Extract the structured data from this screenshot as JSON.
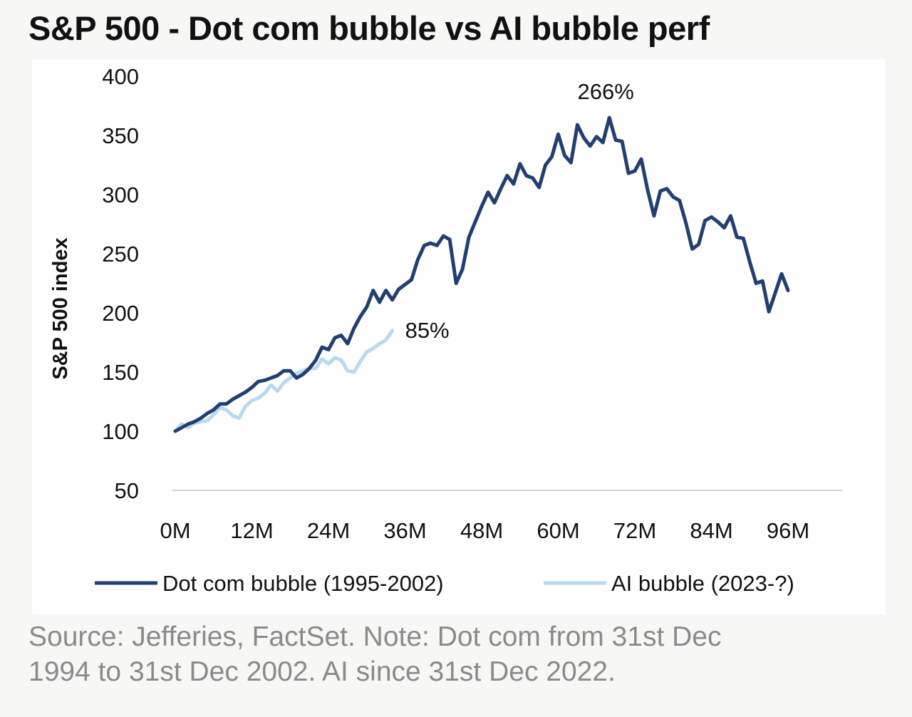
{
  "title": "S&P 500 - Dot com bubble vs AI bubble perf",
  "source_lines": [
    "Source: Jefferies, FactSet. Note: Dot com from 31st Dec",
    "1994 to 31st Dec 2002. AI since 31st Dec 2022."
  ],
  "chart_data": {
    "type": "line",
    "title": "S&P 500 - Dot com bubble vs AI bubble perf",
    "xlabel": "",
    "ylabel": "S&P 500 index",
    "xlim": [
      0,
      96
    ],
    "ylim": [
      50,
      400
    ],
    "x_ticks": [
      0,
      12,
      24,
      36,
      48,
      60,
      72,
      84,
      96
    ],
    "x_tick_labels": [
      "0M",
      "12M",
      "24M",
      "36M",
      "48M",
      "60M",
      "72M",
      "84M",
      "96M"
    ],
    "y_ticks": [
      50,
      100,
      150,
      200,
      250,
      300,
      350,
      400
    ],
    "y_tick_labels": [
      "50",
      "100",
      "150",
      "200",
      "250",
      "300",
      "350",
      "400"
    ],
    "grid": false,
    "legend": "bottom",
    "series": [
      {
        "name": "Dot com bubble (1995-2002)",
        "color": "#223f73",
        "values": [
          100,
          103,
          106,
          108,
          111,
          115,
          118,
          123,
          123,
          127,
          130,
          133,
          137,
          142,
          143,
          145,
          147,
          151,
          151,
          145,
          148,
          153,
          160,
          171,
          169,
          179,
          181,
          174,
          187,
          197,
          205,
          219,
          209,
          219,
          211,
          220,
          224,
          228,
          245,
          257,
          259,
          257,
          265,
          262,
          225,
          237,
          264,
          277,
          290,
          302,
          293,
          305,
          316,
          309,
          326,
          316,
          314,
          306,
          325,
          332,
          351,
          333,
          327,
          359,
          348,
          341,
          349,
          344,
          365,
          346,
          345,
          318,
          320,
          330,
          304,
          282,
          303,
          305,
          298,
          295,
          276,
          254,
          258,
          278,
          281,
          277,
          272,
          282,
          264,
          263,
          243,
          225,
          227,
          201,
          217,
          233,
          219
        ],
        "end_label": "",
        "peak_label": "266%"
      },
      {
        "name": "AI bubble (2023-?)",
        "color": "#b9d9ef",
        "values": [
          100,
          106,
          103,
          107,
          108,
          109,
          114,
          120,
          118,
          113,
          111,
          121,
          126,
          128,
          132,
          139,
          134,
          141,
          145,
          149,
          151,
          153,
          153,
          161,
          157,
          162,
          160,
          151,
          150,
          159,
          167,
          170,
          174,
          177,
          185
        ],
        "end_label": "85%"
      }
    ],
    "annotations": [
      "266%",
      "85%"
    ]
  }
}
